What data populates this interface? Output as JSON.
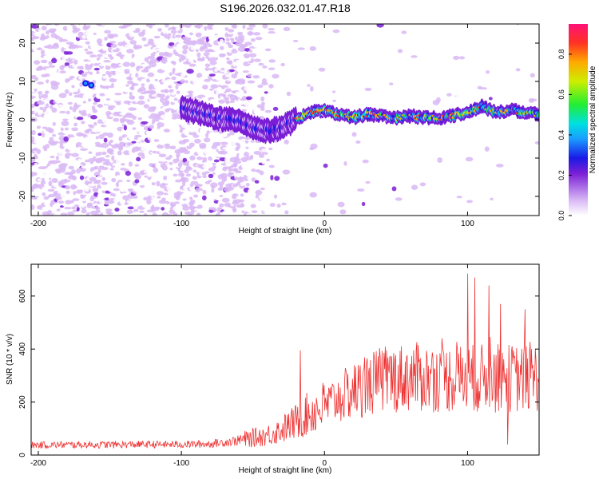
{
  "page": {
    "title": "S196.2026.032.01.47.R18"
  },
  "colors": {
    "snr_line": "#ee3333",
    "axis": "#000000",
    "background": "#ffffff"
  },
  "chart_data": [
    {
      "type": "heatmap",
      "name": "spectrogram",
      "title": "S196.2026.032.01.47.R18",
      "xlabel": "Height of straight line (km)",
      "ylabel": "Frequency (Hz)",
      "xlim": [
        -205,
        150
      ],
      "ylim": [
        -25,
        25
      ],
      "xticks": [
        -200,
        -100,
        0,
        100
      ],
      "xtick_labels": [
        "-200",
        "-100",
        "0",
        "100"
      ],
      "yticks": [
        -20,
        -10,
        0,
        10,
        20
      ],
      "ytick_labels": [
        "-20",
        "-10",
        "0",
        "10",
        "20"
      ],
      "colorbar": {
        "label": "Normalized spectral amplitude",
        "range": [
          0,
          0.95
        ],
        "ticks": [
          0,
          0.2,
          0.4,
          0.6,
          0.8
        ],
        "tick_labels": [
          "0.0",
          "0.2",
          "0.4",
          "0.6",
          "0.8"
        ]
      },
      "ridge": {
        "x": [
          -100,
          -90,
          -80,
          -70,
          -60,
          -50,
          -40,
          -30,
          -20,
          -10,
          0,
          10,
          20,
          30,
          40,
          50,
          60,
          70,
          80,
          90,
          100,
          110,
          120,
          130,
          140,
          150
        ],
        "y": [
          3,
          2,
          1,
          0,
          0,
          -2,
          -3,
          -2,
          0,
          2,
          2.5,
          1.5,
          0.5,
          1.5,
          1,
          0.5,
          1,
          0.5,
          0.5,
          1,
          2,
          3.5,
          2,
          2.5,
          2,
          1.5
        ]
      },
      "hot_spots": [
        {
          "x": -167,
          "y": 9.5,
          "level": 0.3
        },
        {
          "x": -163,
          "y": 9,
          "level": 0.3
        }
      ]
    },
    {
      "type": "line",
      "name": "snr",
      "xlabel": "Height of straight line (km)",
      "ylabel": "SNR (10 * v/v)",
      "xlim": [
        -205,
        150
      ],
      "ylim": [
        0,
        720
      ],
      "xticks": [
        -200,
        -100,
        0,
        100
      ],
      "xtick_labels": [
        "-200",
        "-100",
        "0",
        "100"
      ],
      "yticks": [
        0,
        200,
        400,
        600
      ],
      "ytick_labels": [
        "0",
        "200",
        "400",
        "600"
      ],
      "trend": {
        "x": [
          -205,
          -120,
          -100,
          -80,
          -60,
          -40,
          -30,
          -20,
          -10,
          0,
          10,
          20,
          30,
          40,
          50,
          60,
          80,
          100,
          120,
          140,
          150
        ],
        "y": [
          38,
          40,
          40,
          42,
          55,
          75,
          95,
          125,
          160,
          185,
          215,
          240,
          265,
          285,
          290,
          295,
          290,
          290,
          290,
          290,
          295
        ]
      },
      "peaks": [
        {
          "x": -17,
          "y": 395
        },
        {
          "x": 100,
          "y": 685
        },
        {
          "x": 105,
          "y": 670
        },
        {
          "x": 115,
          "y": 640
        },
        {
          "x": 128,
          "y": 715
        },
        {
          "x": 123,
          "y": 570
        },
        {
          "x": 140,
          "y": 550
        },
        {
          "x": 128,
          "y": 40
        }
      ]
    }
  ]
}
